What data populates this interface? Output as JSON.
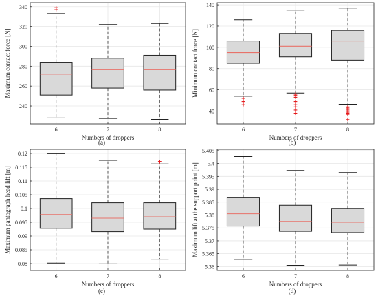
{
  "figure": {
    "colors": {
      "box_fill": "#d9d9d9",
      "box_edge": "#222222",
      "median": "#e8726a",
      "whisker": "#555555",
      "outlier": "#e41a1c",
      "grid": "#e6e6e6"
    }
  },
  "chart_data": [
    {
      "type": "box",
      "panel_label": "(a)",
      "xlabel": "Numbers of droppers",
      "ylabel": "Maximum contact force  [N]",
      "categories": [
        "6",
        "7",
        "8"
      ],
      "ylim": [
        222,
        344
      ],
      "yticks": [
        240,
        260,
        280,
        300,
        320,
        340
      ],
      "ytick_labels": [
        "240",
        "260",
        "280",
        "300",
        "320",
        "340"
      ],
      "grid": true,
      "boxes": [
        {
          "min": 228,
          "q1": 251,
          "median": 272,
          "q3": 284,
          "max": 333,
          "outliers": [
            337,
            339
          ]
        },
        {
          "min": 227.5,
          "q1": 258,
          "median": 277,
          "q3": 288,
          "max": 322,
          "outliers": []
        },
        {
          "min": 226.5,
          "q1": 256,
          "median": 277,
          "q3": 291,
          "max": 323,
          "outliers": []
        }
      ]
    },
    {
      "type": "box",
      "panel_label": "(b)",
      "xlabel": "Numbers of droppers",
      "ylabel": "Minimum contact force  [N]",
      "categories": [
        "6",
        "7",
        "8"
      ],
      "ylim": [
        28,
        142
      ],
      "yticks": [
        40,
        60,
        80,
        100,
        120,
        140
      ],
      "ytick_labels": [
        "40",
        "60",
        "80",
        "100",
        "120",
        "140"
      ],
      "grid": true,
      "boxes": [
        {
          "min": 54,
          "q1": 85,
          "median": 95,
          "q3": 106,
          "max": 126,
          "outliers": [
            52,
            49,
            46
          ]
        },
        {
          "min": 57,
          "q1": 91,
          "median": 101,
          "q3": 113,
          "max": 135,
          "outliers": [
            56,
            55,
            53,
            49,
            46,
            44,
            41,
            38
          ]
        },
        {
          "min": 46.5,
          "q1": 88,
          "median": 106,
          "q3": 116,
          "max": 137,
          "outliers": [
            44,
            43,
            42,
            41,
            39,
            38,
            37,
            32
          ]
        }
      ]
    },
    {
      "type": "box",
      "panel_label": "(c)",
      "xlabel": "Numbers of droppers",
      "ylabel": "Maximum pantograph head lift  [m]",
      "categories": [
        "6",
        "7",
        "8"
      ],
      "ylim": [
        0.0775,
        0.1215
      ],
      "yticks": [
        0.08,
        0.085,
        0.09,
        0.095,
        0.1,
        0.105,
        0.11,
        0.115,
        0.12
      ],
      "ytick_labels": [
        "0.08",
        "0.085",
        "0.09",
        "0.095",
        "0.1",
        "0.105",
        "0.11",
        "0.115",
        "0.12"
      ],
      "grid": true,
      "boxes": [
        {
          "min": 0.0802,
          "q1": 0.0928,
          "median": 0.0978,
          "q3": 0.1036,
          "max": 0.1199,
          "outliers": []
        },
        {
          "min": 0.0799,
          "q1": 0.0916,
          "median": 0.0965,
          "q3": 0.1021,
          "max": 0.1175,
          "outliers": []
        },
        {
          "min": 0.0816,
          "q1": 0.0925,
          "median": 0.097,
          "q3": 0.1021,
          "max": 0.1162,
          "outliers": [
            0.1171,
            0.1169
          ]
        }
      ]
    },
    {
      "type": "box",
      "panel_label": "(d)",
      "xlabel": "Numbers of droppers",
      "ylabel": "Maximum lift at the support point  [m]",
      "categories": [
        "6",
        "7",
        "8"
      ],
      "ylim": [
        5.3585,
        5.4055
      ],
      "yticks": [
        5.36,
        5.365,
        5.37,
        5.375,
        5.38,
        5.385,
        5.39,
        5.395,
        5.4,
        5.405
      ],
      "ytick_labels": [
        "5.36",
        "5.365",
        "5.37",
        "5.375",
        "5.38",
        "5.385",
        "5.39",
        "5.395",
        "5.4",
        "5.405"
      ],
      "grid": true,
      "boxes": [
        {
          "min": 5.3628,
          "q1": 5.3757,
          "median": 5.3805,
          "q3": 5.3869,
          "max": 5.4027,
          "outliers": []
        },
        {
          "min": 5.3605,
          "q1": 5.3737,
          "median": 5.3775,
          "q3": 5.3838,
          "max": 5.3973,
          "outliers": []
        },
        {
          "min": 5.3606,
          "q1": 5.3732,
          "median": 5.3772,
          "q3": 5.3826,
          "max": 5.3965,
          "outliers": []
        }
      ]
    }
  ]
}
